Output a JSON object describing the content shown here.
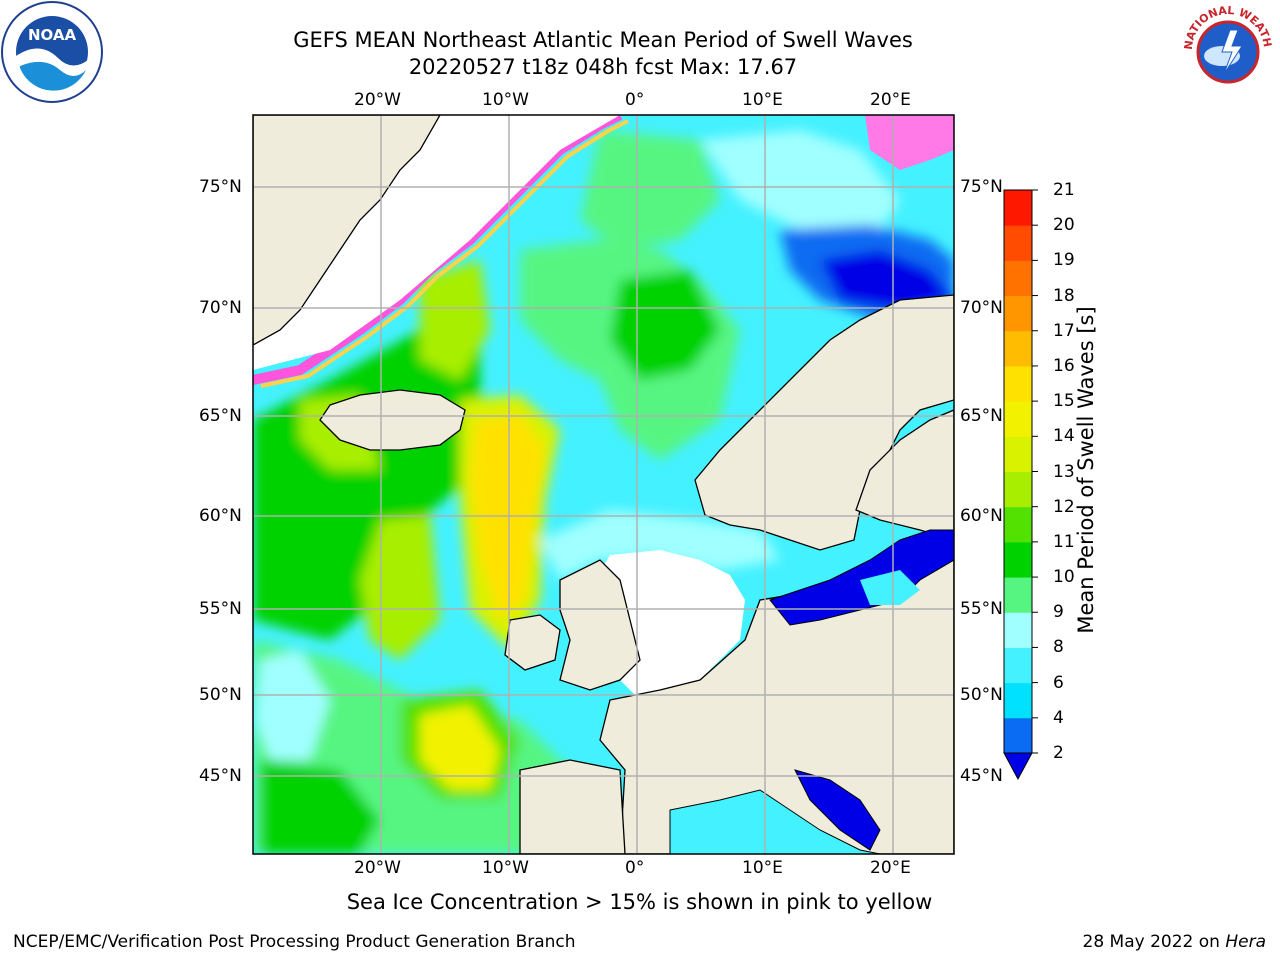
{
  "title": {
    "line1": "GEFS MEAN Northeast Atlantic Mean Period of Swell Waves",
    "line2": "20220527 t18z 048h fcst   Max: 17.67"
  },
  "map": {
    "lon_range": [
      -30,
      25
    ],
    "lat_range": [
      41,
      78
    ],
    "lon_ticks": [
      "20°W",
      "10°W",
      "0°",
      "10°E",
      "20°E"
    ],
    "lat_ticks": [
      "75°N",
      "70°N",
      "65°N",
      "60°N",
      "55°N",
      "50°N",
      "45°N"
    ],
    "grid": true,
    "land_color": "#efecdc",
    "note": "Sea Ice Concentration > 15% is shown in pink to yellow"
  },
  "colorbar": {
    "label": "Mean Period of Swell Waves [s]",
    "ticks": [
      "2",
      "4",
      "6",
      "8",
      "9",
      "10",
      "11",
      "12",
      "13",
      "14",
      "15",
      "16",
      "17",
      "18",
      "19",
      "20",
      "21"
    ],
    "colors": [
      "#0a6cf2",
      "#00e1ff",
      "#44f1ff",
      "#a0ffff",
      "#56f582",
      "#00d200",
      "#52e100",
      "#a8ee00",
      "#d8f200",
      "#f2f200",
      "#ffe100",
      "#ffbc00",
      "#ff9600",
      "#ff7200",
      "#ff4c00",
      "#ff1800"
    ],
    "under_color": "#0000e6"
  },
  "footer": {
    "left": "NCEP/EMC/Verification Post Processing Product Generation Branch",
    "date": "28 May 2022 on",
    "host": "Hera"
  },
  "logos": {
    "left": "noaa-logo",
    "right": "nws-logo",
    "nws_text": "NATIONAL WEATHER SERVICE"
  }
}
